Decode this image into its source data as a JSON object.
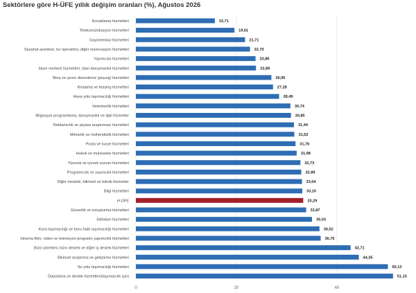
{
  "chart_data": {
    "type": "bar",
    "orientation": "horizontal",
    "title": "Sektörlere göre H-ÜFE yıllık değişim oranları (%), Ağustos 2026",
    "xlabel": "",
    "ylabel": "",
    "xlim": [
      0,
      55
    ],
    "xticks": [
      0,
      20,
      40
    ],
    "grid": true,
    "categories": [
      "Konaklama hizmetleri",
      "Telekomünikasyon hizmetleri",
      "Gayrimenkul hizmetleri",
      "Seyahat acentesi, tur operatörü, diğer rezervasyon hizmetleri",
      "Yayımcılık hizmetleri",
      "İdare merkezi hizmetleri; idari danışmanlık hizmetleri",
      "Bina ve çevre düzenleme (peyzaj) hizmetleri",
      "Kiralama ve leasing hizmetleri",
      "Hava yolu taşımacılığı hizmetleri",
      "Veterinerlik hizmetleri",
      "Bilgisayar programlama, danışmanlık ve ilgili hizmetler",
      "Reklamcılık ve piyasa araştırması hizmetleri",
      "Mimarlık ve mühendislik hizmetleri",
      "Posta ve kurye hizmetleri",
      "Hukuk ve muhasebe hizmetleri",
      "Yiyecek ve içecek sunum hizmetleri",
      "Programcılık ve yayıncılık hizmetleri",
      "Diğer mesleki, bilimsel ve teknik hizmetler",
      "Bilgi hizmetleri",
      "H-ÜFE",
      "Güvenlik ve soruşturma hizmetleri",
      "İstihdam hizmetleri",
      "Kara taşımacılığı ve boru hattı taşımacılığı hizmetleri",
      "Sinema filmi, video ve televizyon programı yapımcılık hizmetleri",
      "Büro yönetimi, büro destek ve diğer iş destek hizmetleri",
      "Bilimsel araştırma ve geliştirme hizmetleri",
      "Su yolu taşımacılığı hizmetleri",
      "Depolama ve destek hizmetleri(taşımacılık için)"
    ],
    "values": [
      15.71,
      19.61,
      21.71,
      22.7,
      23.8,
      23.89,
      26.95,
      27.28,
      28.49,
      30.74,
      30.85,
      31.44,
      31.52,
      31.76,
      31.98,
      32.73,
      32.89,
      33.04,
      33.1,
      33.29,
      33.87,
      35.03,
      36.52,
      36.76,
      42.71,
      44.35,
      50.13,
      51.15
    ],
    "value_labels": [
      "15,71",
      "19,61",
      "21,71",
      "22,70",
      "23,80",
      "23,89",
      "26,95",
      "27,28",
      "28,49",
      "30,74",
      "30,85",
      "31,44",
      "31,52",
      "31,76",
      "31,98",
      "32,73",
      "32,89",
      "33,04",
      "33,10",
      "33,29",
      "33,87",
      "35,03",
      "36,52",
      "36,76",
      "42,71",
      "44,35",
      "50,13",
      "51,15"
    ],
    "highlight_category": "H-ÜFE",
    "colors": {
      "bar": "#2e6db4",
      "highlight": "#a3202a",
      "grid": "#e6e6e6"
    }
  }
}
